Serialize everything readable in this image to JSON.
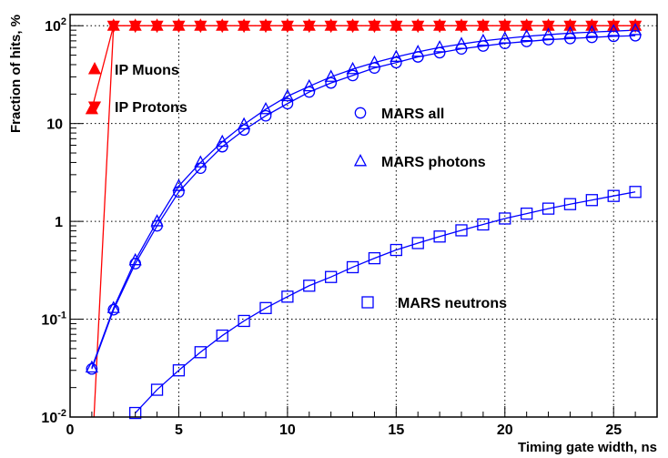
{
  "chart_data": {
    "type": "scatter",
    "title": "",
    "xlabel": "Timing gate width, ns",
    "ylabel": "Fraction of hits, %",
    "x_scale": "linear",
    "y_scale": "log",
    "xlim": [
      0,
      27
    ],
    "ylim": [
      0.01,
      130
    ],
    "grid": true,
    "legend_position": "inside",
    "x_ticks": [
      {
        "value": 0,
        "label": "0"
      },
      {
        "value": 5,
        "label": "5"
      },
      {
        "value": 10,
        "label": "10"
      },
      {
        "value": 15,
        "label": "15"
      },
      {
        "value": 20,
        "label": "20"
      },
      {
        "value": 25,
        "label": "25"
      }
    ],
    "y_ticks": [
      {
        "value": 0.01,
        "base": "10",
        "exp": "-2"
      },
      {
        "value": 0.1,
        "base": "10",
        "exp": "-1"
      },
      {
        "value": 1,
        "base": "1",
        "exp": ""
      },
      {
        "value": 10,
        "base": "10",
        "exp": ""
      },
      {
        "value": 100,
        "base": "10",
        "exp": "2"
      }
    ],
    "series": [
      {
        "name": "IP Muons",
        "color": "#ff0000",
        "marker": "triangle-up",
        "marker_fill": "filled",
        "line": true,
        "points": [
          [
            1,
            14
          ],
          [
            2,
            100
          ],
          [
            3,
            100
          ],
          [
            4,
            100
          ],
          [
            5,
            100
          ],
          [
            6,
            100
          ],
          [
            7,
            100
          ],
          [
            8,
            100
          ],
          [
            9,
            100
          ],
          [
            10,
            100
          ],
          [
            11,
            100
          ],
          [
            12,
            100
          ],
          [
            13,
            100
          ],
          [
            14,
            100
          ],
          [
            15,
            100
          ],
          [
            16,
            100
          ],
          [
            17,
            100
          ],
          [
            18,
            100
          ],
          [
            19,
            100
          ],
          [
            20,
            100
          ],
          [
            21,
            100
          ],
          [
            22,
            100
          ],
          [
            23,
            100
          ],
          [
            24,
            100
          ],
          [
            25,
            100
          ],
          [
            26,
            100
          ]
        ]
      },
      {
        "name": "IP Protons",
        "color": "#ff0000",
        "marker": "triangle-down",
        "marker_fill": "filled",
        "line": true,
        "points": [
          [
            1.1,
            0.01
          ],
          [
            2,
            100
          ],
          [
            3,
            100
          ],
          [
            4,
            100
          ],
          [
            5,
            100
          ],
          [
            6,
            100
          ],
          [
            7,
            100
          ],
          [
            8,
            100
          ],
          [
            9,
            100
          ],
          [
            10,
            100
          ],
          [
            11,
            100
          ],
          [
            12,
            100
          ],
          [
            13,
            100
          ],
          [
            14,
            100
          ],
          [
            15,
            100
          ],
          [
            16,
            100
          ],
          [
            17,
            100
          ],
          [
            18,
            100
          ],
          [
            19,
            100
          ],
          [
            20,
            100
          ],
          [
            21,
            100
          ],
          [
            22,
            100
          ],
          [
            23,
            100
          ],
          [
            24,
            100
          ],
          [
            25,
            100
          ],
          [
            26,
            100
          ]
        ]
      },
      {
        "name": "MARS all",
        "color": "#0000ff",
        "marker": "circle",
        "marker_fill": "open",
        "line": true,
        "points": [
          [
            1,
            0.031
          ],
          [
            2,
            0.125
          ],
          [
            3,
            0.37
          ],
          [
            4,
            0.9
          ],
          [
            5,
            2.0
          ],
          [
            6,
            3.5
          ],
          [
            7,
            5.8
          ],
          [
            8,
            8.6
          ],
          [
            9,
            12
          ],
          [
            10,
            16
          ],
          [
            11,
            21
          ],
          [
            12,
            26
          ],
          [
            13,
            31
          ],
          [
            14,
            37
          ],
          [
            15,
            42
          ],
          [
            16,
            48
          ],
          [
            17,
            53
          ],
          [
            18,
            58
          ],
          [
            19,
            62
          ],
          [
            20,
            66
          ],
          [
            21,
            69
          ],
          [
            22,
            72
          ],
          [
            23,
            74
          ],
          [
            24,
            76
          ],
          [
            25,
            78
          ],
          [
            26,
            79
          ]
        ]
      },
      {
        "name": "MARS photons",
        "color": "#0000ff",
        "marker": "triangle-up",
        "marker_fill": "open",
        "line": true,
        "points": [
          [
            1,
            0.032
          ],
          [
            2,
            0.13
          ],
          [
            3,
            0.4
          ],
          [
            4,
            1.0
          ],
          [
            5,
            2.3
          ],
          [
            6,
            4.0
          ],
          [
            7,
            6.5
          ],
          [
            8,
            9.8
          ],
          [
            9,
            14
          ],
          [
            10,
            19
          ],
          [
            11,
            24
          ],
          [
            12,
            30
          ],
          [
            13,
            36
          ],
          [
            14,
            42
          ],
          [
            15,
            48
          ],
          [
            16,
            54
          ],
          [
            17,
            60
          ],
          [
            18,
            65
          ],
          [
            19,
            70
          ],
          [
            20,
            74
          ],
          [
            21,
            78
          ],
          [
            22,
            81
          ],
          [
            23,
            84
          ],
          [
            24,
            86
          ],
          [
            25,
            88
          ],
          [
            26,
            90
          ]
        ]
      },
      {
        "name": "MARS neutrons",
        "color": "#0000ff",
        "marker": "square",
        "marker_fill": "open",
        "line": true,
        "points": [
          [
            3,
            0.011
          ],
          [
            4,
            0.019
          ],
          [
            5,
            0.03
          ],
          [
            6,
            0.046
          ],
          [
            7,
            0.068
          ],
          [
            8,
            0.096
          ],
          [
            9,
            0.13
          ],
          [
            10,
            0.17
          ],
          [
            11,
            0.22
          ],
          [
            12,
            0.27
          ],
          [
            13,
            0.34
          ],
          [
            14,
            0.42
          ],
          [
            15,
            0.51
          ],
          [
            16,
            0.6
          ],
          [
            17,
            0.7
          ],
          [
            18,
            0.81
          ],
          [
            19,
            0.93
          ],
          [
            20,
            1.07
          ],
          [
            21,
            1.2
          ],
          [
            22,
            1.35
          ],
          [
            23,
            1.5
          ],
          [
            24,
            1.65
          ],
          [
            25,
            1.82
          ],
          [
            26,
            2.0
          ]
        ]
      }
    ],
    "legend": [
      {
        "series": "IP Muons",
        "label": "IP Muons"
      },
      {
        "series": "IP Protons",
        "label": "IP Protons"
      },
      {
        "series": "MARS all",
        "label": "MARS all"
      },
      {
        "series": "MARS photons",
        "label": "MARS photons"
      },
      {
        "series": "MARS neutrons",
        "label": "MARS neutrons"
      }
    ]
  }
}
